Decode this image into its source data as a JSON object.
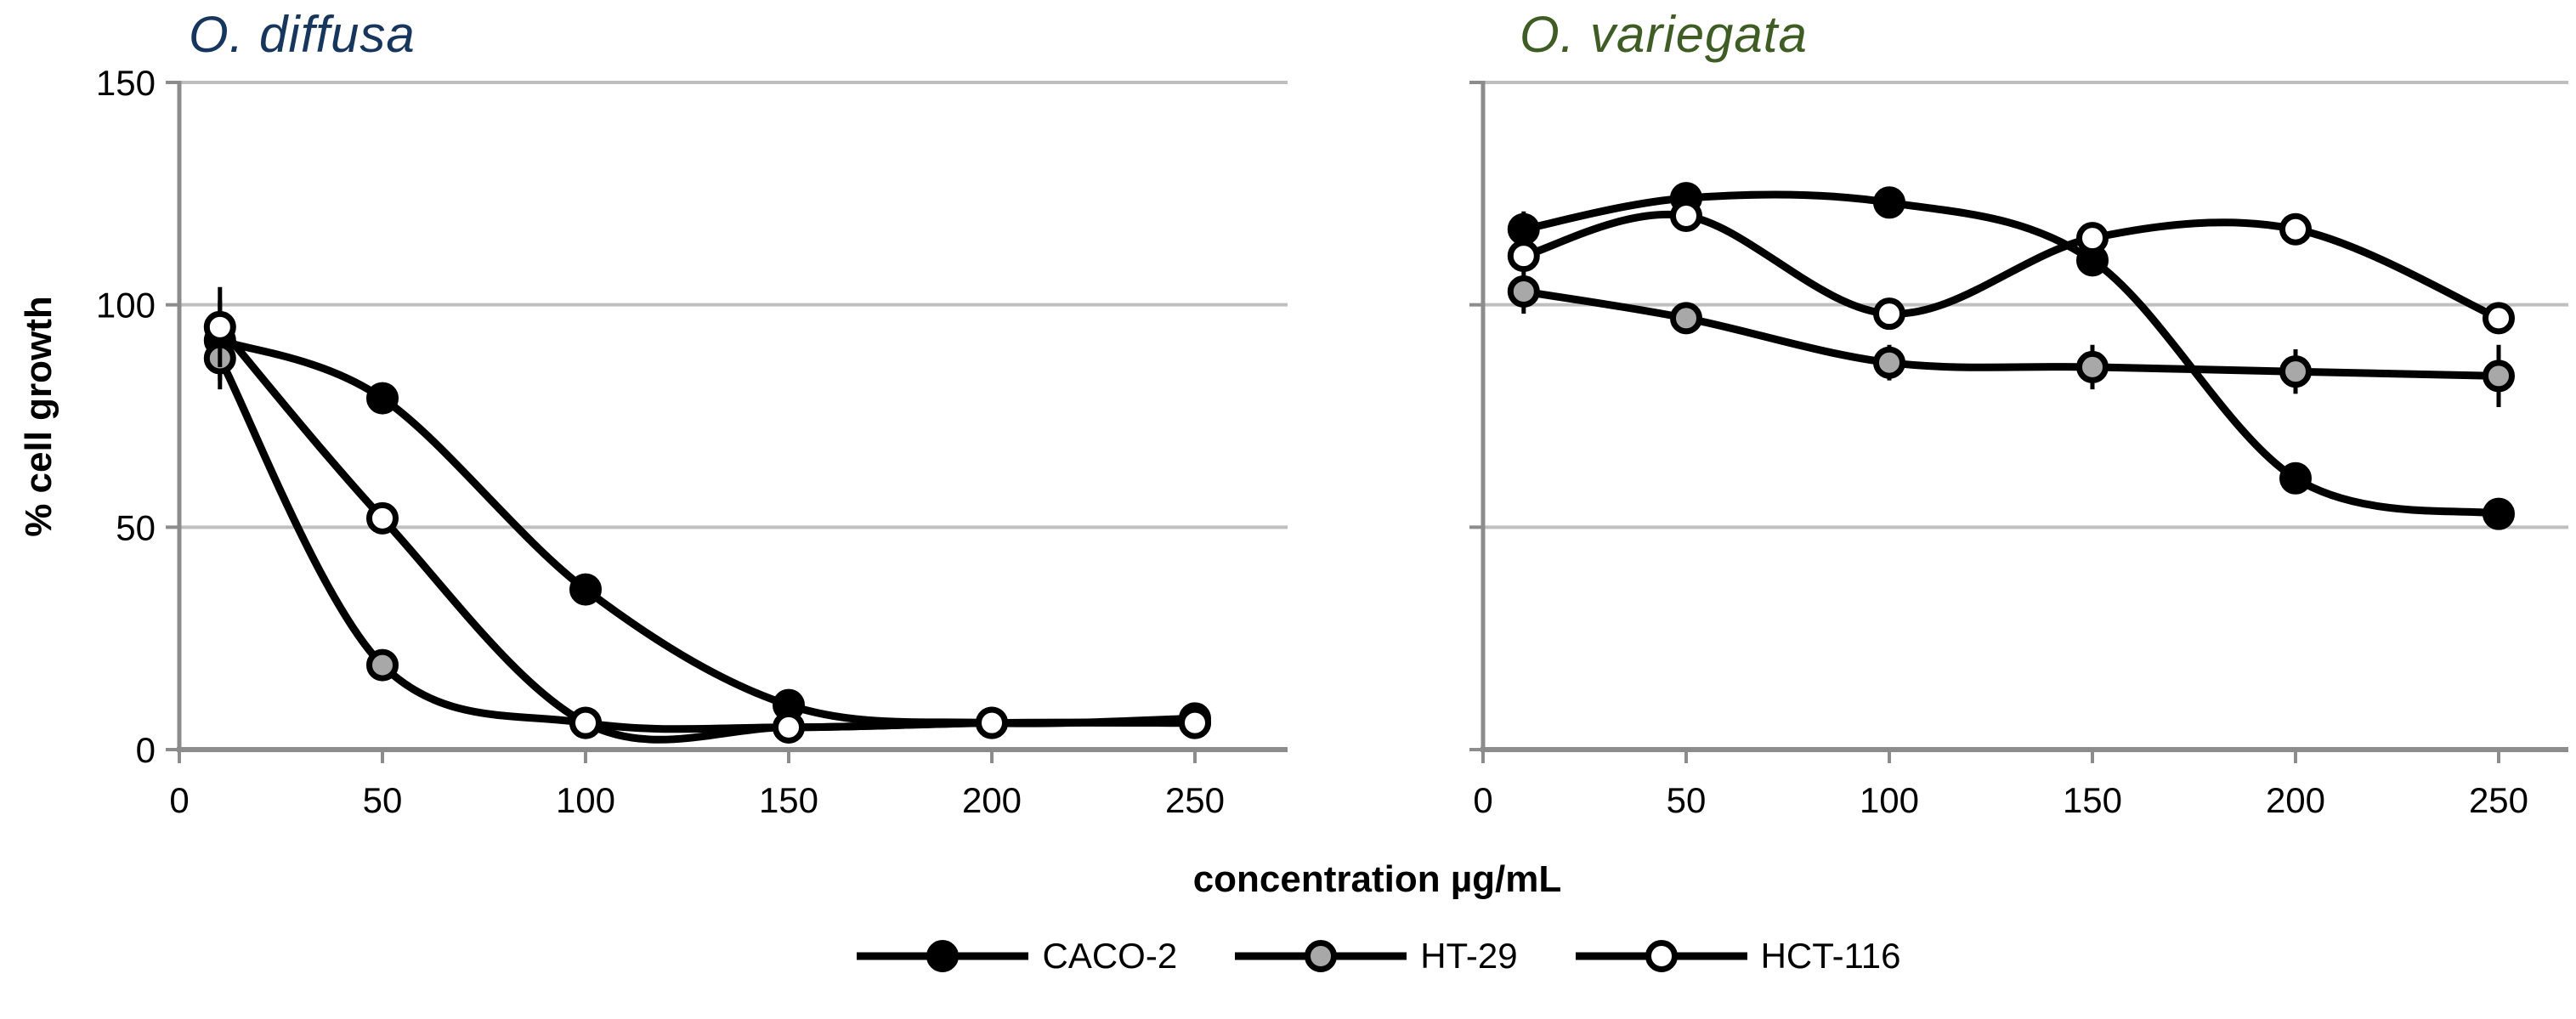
{
  "colors": {
    "navy_title": "#17365D",
    "green_title": "#3E5C24",
    "gridline": "#BFBFBF",
    "axis": "#8C8C8C",
    "series_line": "#000000",
    "black_fill": "#000000",
    "gray_fill": "#A8A8A8",
    "white_fill": "#FFFFFF",
    "text": "#000000"
  },
  "y_axis": {
    "label": "% cell growth",
    "ticks": [
      0,
      50,
      100,
      150
    ],
    "min": 0,
    "max": 150
  },
  "x_axis": {
    "label": "concentration µg/mL",
    "ticks": [
      0,
      50,
      100,
      150,
      200,
      250
    ],
    "min": 0,
    "max": 250
  },
  "legend": {
    "items": [
      {
        "label": "CACO-2",
        "marker": "black"
      },
      {
        "label": "HT-29",
        "marker": "gray"
      },
      {
        "label": "HCT-116",
        "marker": "white"
      }
    ]
  },
  "chart_data": [
    {
      "type": "line",
      "title": "O. diffusa",
      "title_color": "#17365D",
      "xlabel": "concentration µg/mL",
      "ylabel": "% cell growth",
      "ylim": [
        0,
        150
      ],
      "x": [
        10,
        50,
        100,
        150,
        200,
        250
      ],
      "series": [
        {
          "name": "CACO-2",
          "marker": "black",
          "values": [
            92,
            79,
            36,
            10,
            6,
            7
          ],
          "errors": [
            9,
            0,
            3,
            0,
            0,
            0
          ]
        },
        {
          "name": "HT-29",
          "marker": "gray",
          "values": [
            88,
            19,
            6,
            5,
            6,
            6
          ],
          "errors": [
            7,
            0,
            0,
            0,
            0,
            0
          ]
        },
        {
          "name": "HCT-116",
          "marker": "white",
          "values": [
            95,
            52,
            6,
            5,
            6,
            6
          ],
          "errors": [
            9,
            0,
            0,
            0,
            0,
            0
          ]
        }
      ]
    },
    {
      "type": "line",
      "title": "O. variegata",
      "title_color": "#3E5C24",
      "xlabel": "concentration µg/mL",
      "ylabel": "% cell growth",
      "ylim": [
        0,
        150
      ],
      "x": [
        10,
        50,
        100,
        150,
        200,
        250
      ],
      "series": [
        {
          "name": "CACO-2",
          "marker": "black",
          "values": [
            117,
            124,
            123,
            110,
            61,
            53
          ],
          "errors": [
            4,
            0,
            0,
            0,
            0,
            0
          ]
        },
        {
          "name": "HT-29",
          "marker": "gray",
          "values": [
            103,
            97,
            87,
            86,
            85,
            84
          ],
          "errors": [
            5,
            0,
            4,
            5,
            5,
            7
          ]
        },
        {
          "name": "HCT-116",
          "marker": "white",
          "values": [
            111,
            120,
            98,
            115,
            117,
            97
          ],
          "errors": [
            0,
            0,
            0,
            0,
            0,
            0
          ]
        }
      ]
    }
  ]
}
